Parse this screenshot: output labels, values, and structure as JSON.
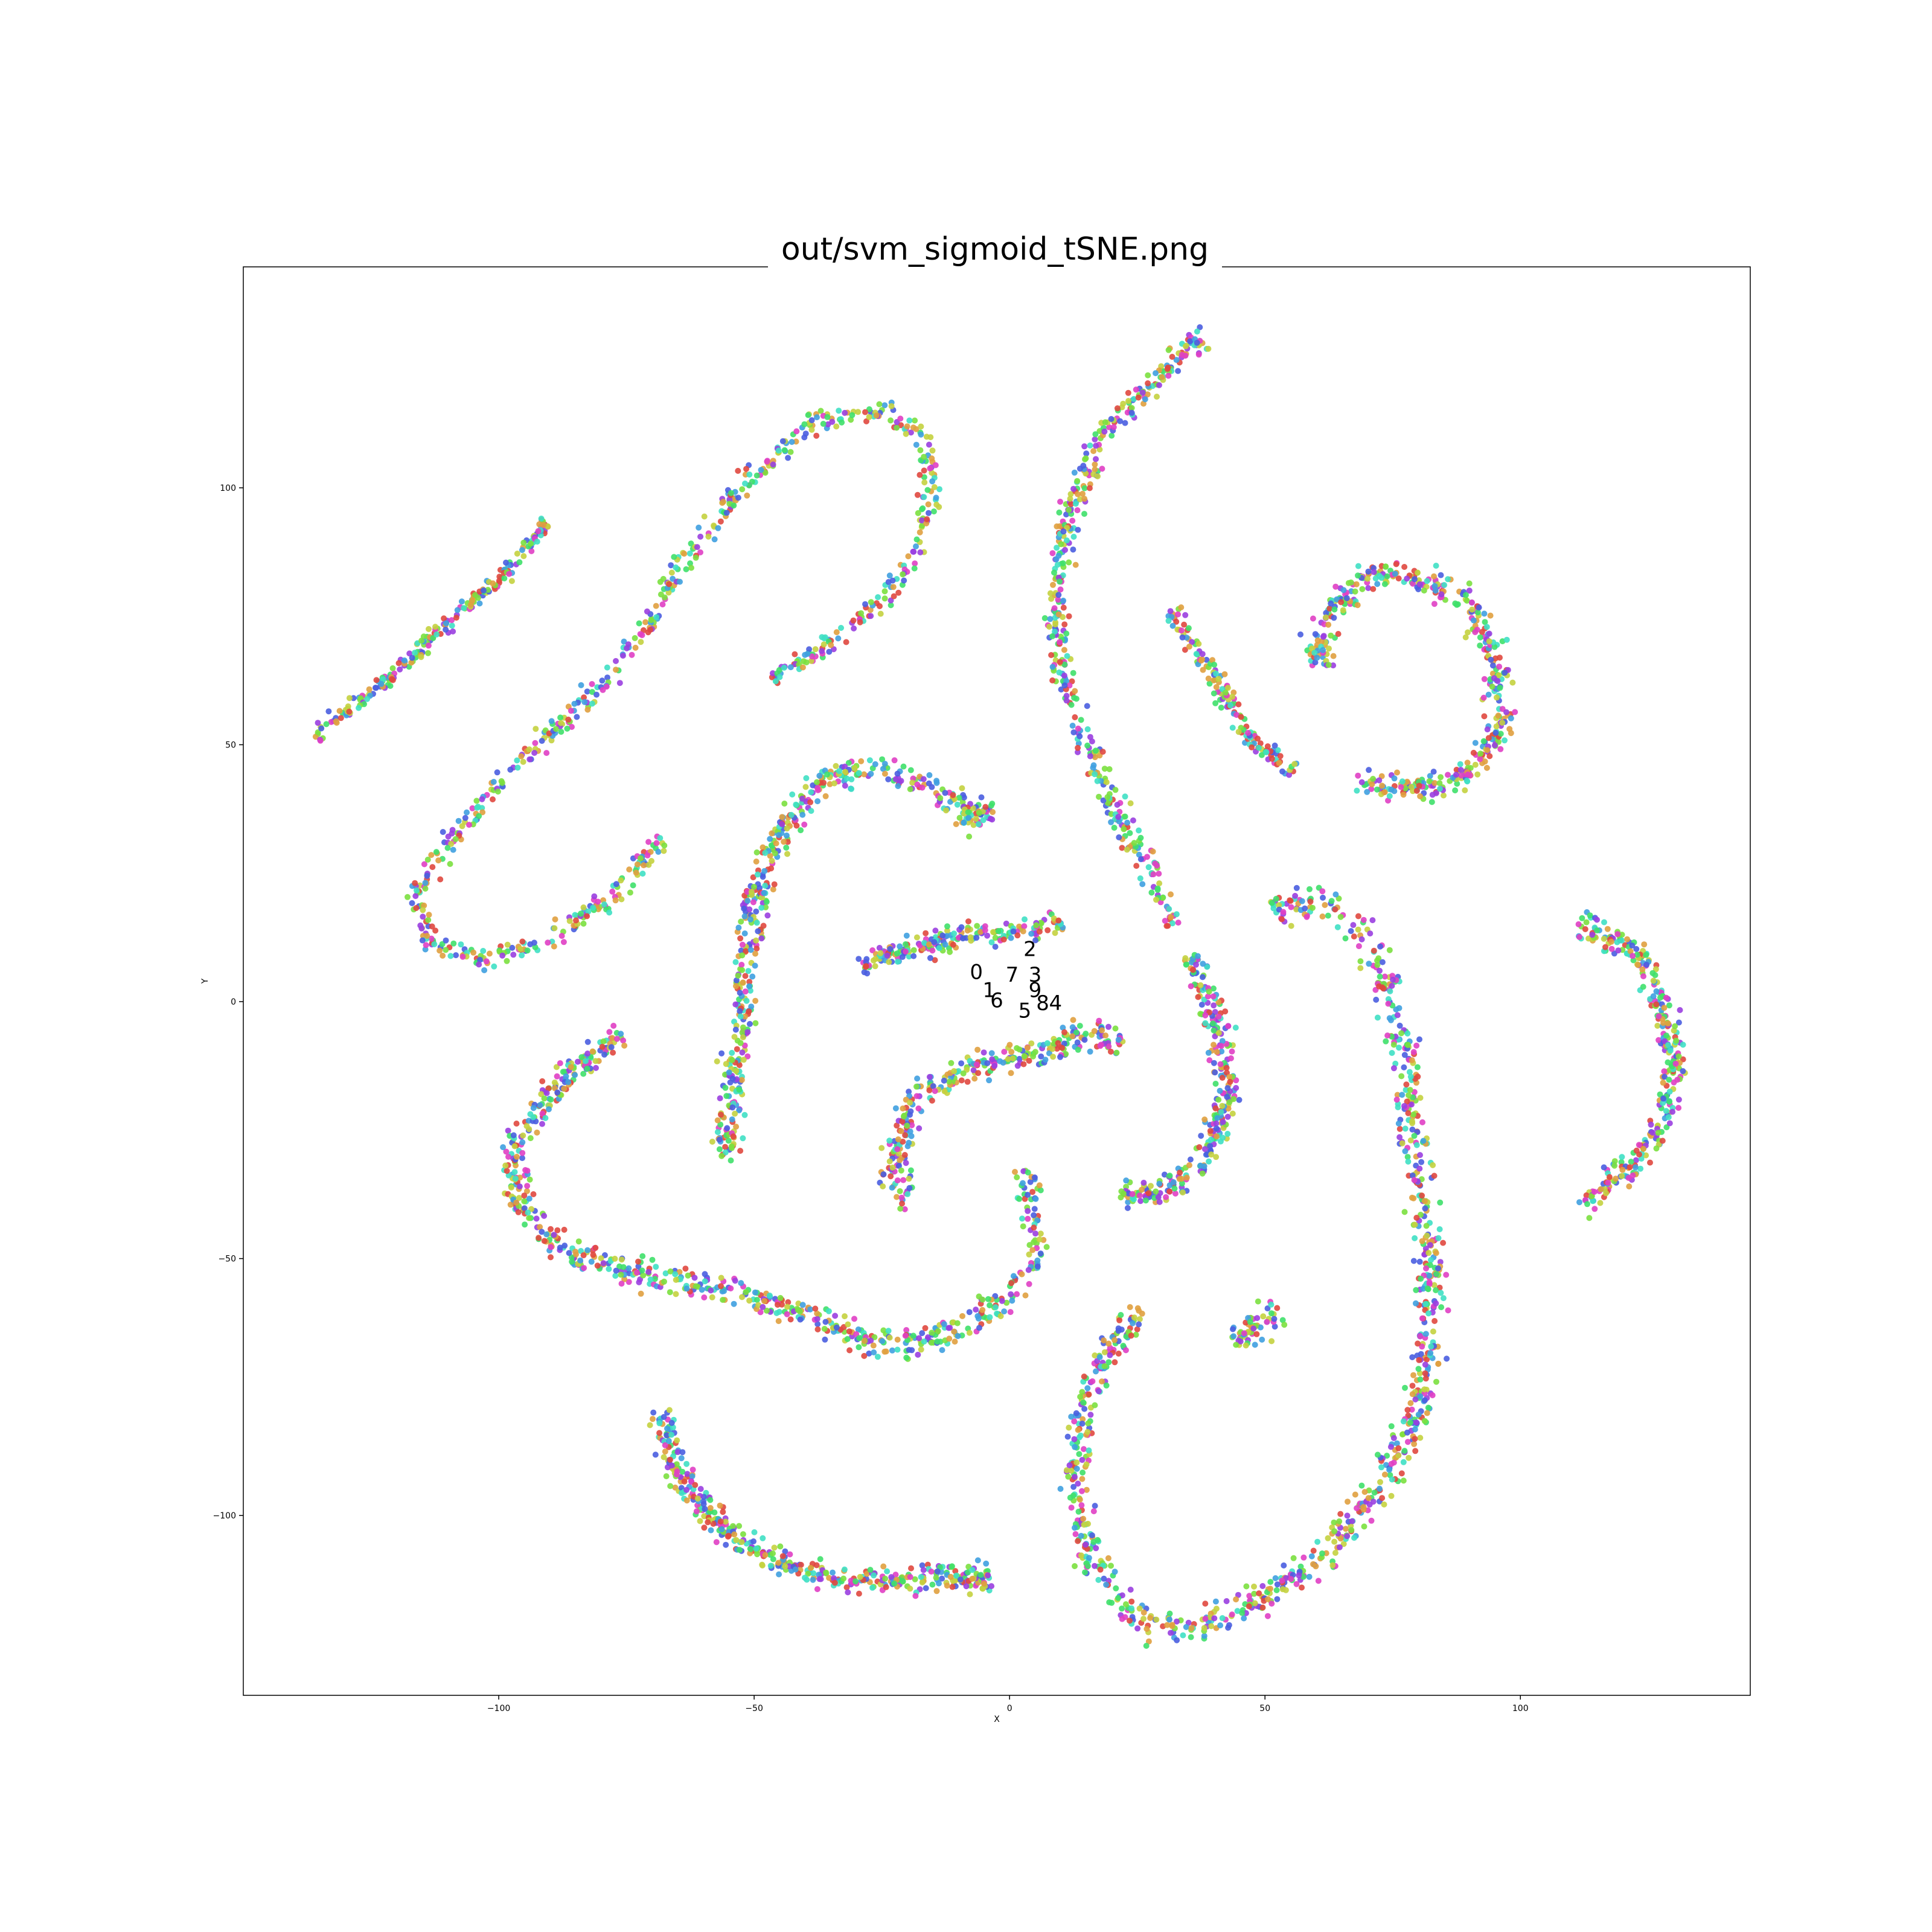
{
  "chart_data": {
    "type": "scatter",
    "title": "out/svm_sigmoid_tSNE.png",
    "xlabel": "X",
    "ylabel": "Y",
    "xlim": [
      -150,
      145
    ],
    "ylim": [
      -135,
      143
    ],
    "xticks": [
      -100,
      -50,
      0,
      50,
      100
    ],
    "xtick_labels": [
      "−100",
      "−50",
      "0",
      "50",
      "100"
    ],
    "yticks": [
      -100,
      -50,
      0,
      50,
      100
    ],
    "ytick_labels": [
      "−100",
      "−50",
      "0",
      "50",
      "100"
    ],
    "grid": false,
    "legend": "none",
    "series": [
      {
        "label": "0",
        "color": "#e0483f"
      },
      {
        "label": "1",
        "color": "#e0a03f"
      },
      {
        "label": "2",
        "color": "#c4d13f"
      },
      {
        "label": "3",
        "color": "#7be03f"
      },
      {
        "label": "4",
        "color": "#3fe06a"
      },
      {
        "label": "5",
        "color": "#3fe0c4"
      },
      {
        "label": "6",
        "color": "#3fa0e0"
      },
      {
        "label": "7",
        "color": "#4a5ee0"
      },
      {
        "label": "8",
        "color": "#9a3fe0"
      },
      {
        "label": "9",
        "color": "#e03fc4"
      }
    ],
    "class_labels": [
      {
        "text": "2",
        "x": 4,
        "y": 10
      },
      {
        "text": "0",
        "x": -6.5,
        "y": 5.5
      },
      {
        "text": "7",
        "x": 0.5,
        "y": 5
      },
      {
        "text": "3",
        "x": 5,
        "y": 5
      },
      {
        "text": "1",
        "x": -4,
        "y": 2
      },
      {
        "text": "9",
        "x": 5,
        "y": 2
      },
      {
        "text": "6",
        "x": -2.5,
        "y": 0
      },
      {
        "text": "8",
        "x": 6.5,
        "y": -0.5
      },
      {
        "text": "4",
        "x": 9,
        "y": -0.5
      },
      {
        "text": "5",
        "x": 3,
        "y": -2
      }
    ],
    "clusters": [
      {
        "path": [
          [
            -136,
            52
          ],
          [
            -125,
            60
          ],
          [
            -112,
            72
          ],
          [
            -100,
            82
          ],
          [
            -90,
            94
          ]
        ],
        "width": 1.2,
        "count": 220
      },
      {
        "path": [
          [
            -47,
            62
          ],
          [
            -35,
            70
          ],
          [
            -25,
            78
          ],
          [
            -18,
            88
          ],
          [
            -15,
            100
          ],
          [
            -17,
            110
          ],
          [
            -25,
            115
          ],
          [
            -38,
            113
          ],
          [
            -50,
            103
          ],
          [
            -62,
            88
          ],
          [
            -70,
            75
          ],
          [
            -78,
            63
          ],
          [
            -90,
            52
          ],
          [
            -104,
            38
          ],
          [
            -116,
            23
          ],
          [
            -114,
            12
          ],
          [
            -104,
            8
          ],
          [
            -90,
            12
          ],
          [
            -78,
            20
          ],
          [
            -68,
            32
          ]
        ],
        "width": 1.6,
        "count": 700
      },
      {
        "path": [
          [
            -56,
            -30
          ],
          [
            -54,
            -15
          ],
          [
            -52,
            0
          ],
          [
            -50,
            20
          ],
          [
            -45,
            32
          ],
          [
            -38,
            42
          ],
          [
            -28,
            46
          ],
          [
            -18,
            43
          ],
          [
            -10,
            38
          ],
          [
            -3,
            37
          ],
          [
            -5,
            35
          ],
          [
            -10,
            38
          ]
        ],
        "width": 2.2,
        "count": 520
      },
      {
        "path": [
          [
            -29,
            7
          ],
          [
            -20,
            10
          ],
          [
            -8,
            13
          ],
          [
            4,
            14
          ],
          [
            10,
            16
          ]
        ],
        "width": 1.8,
        "count": 200
      },
      {
        "path": [
          [
            -20,
            -40
          ],
          [
            -23,
            -30
          ],
          [
            -18,
            -18
          ],
          [
            -8,
            -13
          ],
          [
            5,
            -10
          ],
          [
            15,
            -6
          ],
          [
            22,
            -9
          ]
        ],
        "width": 2.2,
        "count": 300
      },
      {
        "path": [
          [
            -76,
            -7
          ],
          [
            -88,
            -15
          ],
          [
            -97,
            -28
          ],
          [
            -96,
            -40
          ],
          [
            -88,
            -48
          ],
          [
            -70,
            -53
          ],
          [
            -52,
            -57
          ],
          [
            -38,
            -62
          ],
          [
            -25,
            -67
          ],
          [
            -12,
            -65
          ],
          [
            0,
            -58
          ],
          [
            5,
            -50
          ],
          [
            4,
            -40
          ],
          [
            3,
            -33
          ]
        ],
        "width": 2.2,
        "count": 680
      },
      {
        "path": [
          [
            -68,
            -80
          ],
          [
            -65,
            -92
          ],
          [
            -55,
            -104
          ],
          [
            -42,
            -110
          ],
          [
            -28,
            -113
          ],
          [
            -15,
            -112
          ],
          [
            -3,
            -112
          ]
        ],
        "width": 2.2,
        "count": 420
      },
      {
        "path": [
          [
            39,
            130
          ],
          [
            30,
            123
          ],
          [
            18,
            110
          ],
          [
            12,
            95
          ],
          [
            9,
            80
          ],
          [
            10,
            65
          ],
          [
            15,
            50
          ],
          [
            22,
            35
          ],
          [
            28,
            25
          ],
          [
            32,
            15
          ]
        ],
        "width": 1.8,
        "count": 450
      },
      {
        "path": [
          [
            35,
            9
          ],
          [
            40,
            -2
          ],
          [
            43,
            -18
          ],
          [
            38,
            -32
          ],
          [
            30,
            -37
          ],
          [
            22,
            -38
          ]
        ],
        "width": 2.2,
        "count": 300
      },
      {
        "path": [
          [
            32,
            76
          ],
          [
            40,
            63
          ],
          [
            48,
            50
          ],
          [
            56,
            45
          ]
        ],
        "width": 1.5,
        "count": 150
      },
      {
        "path": [
          [
            60,
            65
          ],
          [
            62,
            75
          ],
          [
            70,
            83
          ],
          [
            80,
            83
          ],
          [
            90,
            78
          ],
          [
            96,
            65
          ],
          [
            96,
            52
          ],
          [
            90,
            44
          ],
          [
            80,
            41
          ],
          [
            68,
            43
          ]
        ],
        "width": 2.2,
        "count": 450
      },
      {
        "path": [
          [
            51,
            18
          ],
          [
            62,
            19
          ],
          [
            70,
            12
          ],
          [
            75,
            0
          ],
          [
            78,
            -15
          ],
          [
            80,
            -32
          ],
          [
            82,
            -48
          ],
          [
            83,
            -62
          ],
          [
            80,
            -80
          ],
          [
            72,
            -95
          ],
          [
            60,
            -110
          ],
          [
            48,
            -117
          ],
          [
            38,
            -121
          ],
          [
            30,
            -122
          ],
          [
            22,
            -118
          ],
          [
            16,
            -110
          ],
          [
            13,
            -95
          ],
          [
            14,
            -80
          ],
          [
            18,
            -70
          ],
          [
            26,
            -60
          ]
        ],
        "width": 2.4,
        "count": 950
      },
      {
        "path": [
          [
            111,
            15
          ],
          [
            122,
            11
          ],
          [
            128,
            0
          ],
          [
            130,
            -10
          ],
          [
            128,
            -25
          ],
          [
            120,
            -33
          ],
          [
            112,
            -40
          ]
        ],
        "width": 2.2,
        "count": 320
      },
      {
        "path": [
          [
            44,
            -66
          ],
          [
            48,
            -63
          ],
          [
            53,
            -60
          ]
        ],
        "width": 2.2,
        "count": 60
      }
    ]
  }
}
